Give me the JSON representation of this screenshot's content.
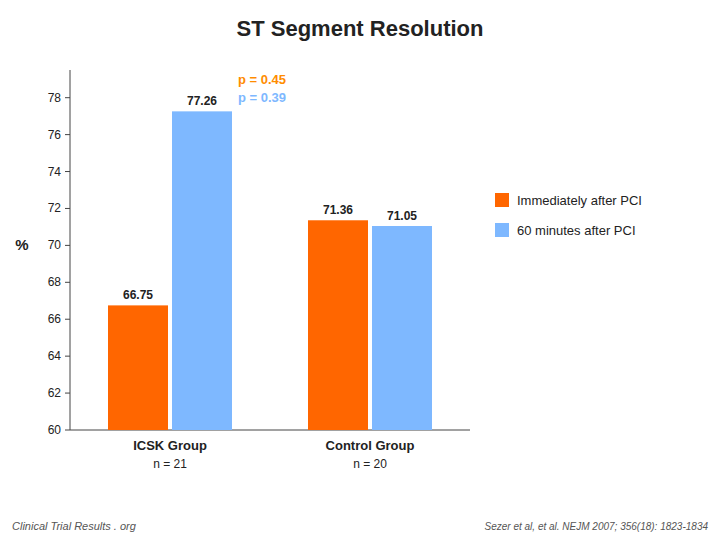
{
  "chart_data": {
    "type": "bar",
    "title": "ST Segment Resolution",
    "y_label": "%",
    "categories": [
      "ICSK Group",
      "Control Group"
    ],
    "group_notes": [
      "n = 21",
      "n = 20"
    ],
    "series": [
      {
        "name": "Immediately after PCI",
        "color": "#FF6600",
        "values": [
          66.75,
          71.36
        ]
      },
      {
        "name": "60 minutes after PCI",
        "color": "#7EB8FF",
        "values": [
          77.26,
          71.05
        ]
      }
    ],
    "ylim": [
      60,
      79.5
    ],
    "yticks": [
      60,
      62,
      64,
      66,
      68,
      70,
      72,
      74,
      76,
      78
    ],
    "data_labels": true,
    "grid": false,
    "legend": "right",
    "annotations": [
      {
        "text": "p = 0.45",
        "color": "#FF8C00"
      },
      {
        "text": "p = 0.39",
        "color": "#7EB8FF"
      }
    ],
    "footnotes": [
      "Clinical Trial Results . org",
      "Sezer et al, et al. NEJM 2007; 356(18): 1823-1834"
    ]
  }
}
